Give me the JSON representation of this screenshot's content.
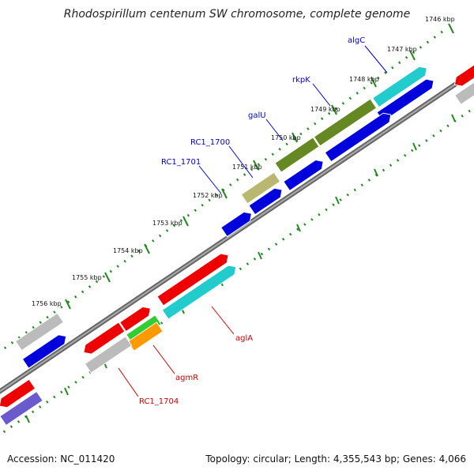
{
  "title": "Rhodospirillum centenum SW chromosome, complete genome",
  "footer": {
    "accession": "Accession: NC_011420",
    "topology": "Topology: circular; Length: 4,355,543 bp; Genes: 4,066"
  },
  "ticks": [
    "1746 kbp",
    "1747 kbp",
    "1748 kbp",
    "1749 kbp",
    "1750 kbp",
    "1751 kbp",
    "1752 kbp",
    "1753 kbp",
    "1754 kbp",
    "1755 kbp",
    "1756 kbp"
  ],
  "genes": [
    {
      "name": "algC",
      "color": "#0000cc"
    },
    {
      "name": "rkpK",
      "color": "#0000cc"
    },
    {
      "name": "galU",
      "color": "#0000cc"
    },
    {
      "name": "RC1_1700",
      "color": "#0000cc"
    },
    {
      "name": "RC1_1701",
      "color": "#0000cc"
    },
    {
      "name": "aglA",
      "color": "#cc0000"
    },
    {
      "name": "agmR",
      "color": "#cc0000"
    },
    {
      "name": "RC1_1704",
      "color": "#cc0000"
    }
  ],
  "colors": {
    "red": "#ee0000",
    "blue": "#0000dd",
    "cyan": "#22cccc",
    "olive": "#668822",
    "khaki": "#b8b870",
    "gray": "#bbbbbb",
    "green": "#33cc33",
    "orange": "#ff9900",
    "purple": "#6a5acd",
    "backbone": "#888888",
    "tick": "#228822"
  }
}
